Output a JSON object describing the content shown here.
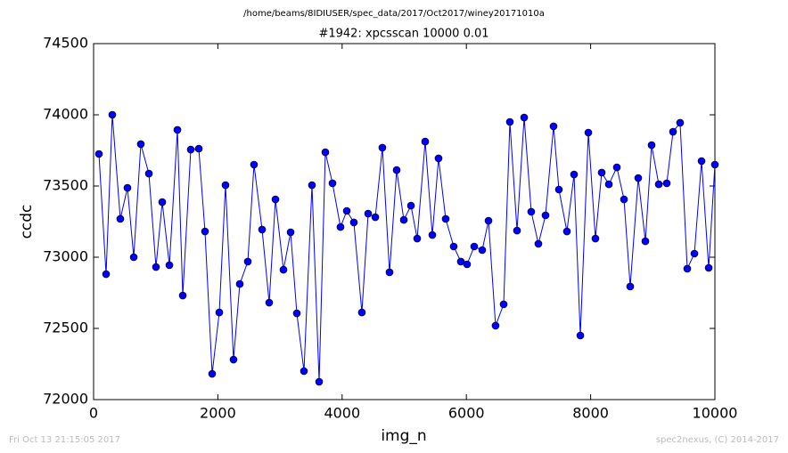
{
  "chart_data": {
    "type": "line",
    "title": "/home/beams/8IDIUSER/spec_data/2017/Oct2017/winey20171010a",
    "subtitle": "#1942: xpcsscan 10000 0.01",
    "x_label": "img_n",
    "y_label": "ccdc",
    "x": [
      86,
      201,
      301,
      430,
      545,
      646,
      760,
      890,
      1004,
      1105,
      1220,
      1349,
      1435,
      1564,
      1693,
      1793,
      1908,
      2023,
      2123,
      2252,
      2353,
      2482,
      2582,
      2712,
      2826,
      2927,
      3056,
      3171,
      3271,
      3386,
      3515,
      3630,
      3730,
      3845,
      3974,
      4075,
      4189,
      4318,
      4419,
      4534,
      4648,
      4763,
      4878,
      4993,
      5108,
      5208,
      5337,
      5452,
      5552,
      5667,
      5796,
      5911,
      6011,
      6126,
      6255,
      6356,
      6470,
      6600,
      6700,
      6815,
      6930,
      7044,
      7159,
      7274,
      7403,
      7489,
      7618,
      7733,
      7834,
      7963,
      8077,
      8178,
      8293,
      8422,
      8537,
      8637,
      8766,
      8881,
      8981,
      9096,
      9225,
      9326,
      9440,
      9555,
      9670,
      9785,
      9900,
      10000
    ],
    "series": [
      {
        "name": "ccdc",
        "color": "#0000ff",
        "values": [
          73725,
          72881,
          74000,
          73269,
          73487,
          73000,
          73794,
          73587,
          72931,
          73387,
          72944,
          73894,
          72731,
          73756,
          73762,
          73181,
          72181,
          72612,
          73506,
          72281,
          72812,
          72969,
          73650,
          73194,
          72681,
          73406,
          72912,
          73175,
          72606,
          72200,
          73506,
          72125,
          73737,
          73519,
          73212,
          73325,
          73244,
          72612,
          73306,
          73281,
          73769,
          72894,
          73612,
          73262,
          73362,
          73131,
          73812,
          73156,
          73694,
          73269,
          73075,
          72969,
          72950,
          73075,
          73050,
          73256,
          72519,
          72669,
          73950,
          73187,
          73981,
          73319,
          73094,
          73294,
          73919,
          73475,
          73181,
          73581,
          72450,
          73875,
          73131,
          73594,
          73512,
          73631,
          73406,
          72794,
          73556,
          73112,
          73787,
          73512,
          73519,
          73881,
          73944,
          72919,
          73025,
          73675,
          72925,
          73650
        ]
      }
    ],
    "xlim": [
      0,
      10000
    ],
    "xticks": [
      0,
      2000,
      4000,
      6000,
      8000,
      10000
    ],
    "ylim": [
      72000,
      74500
    ],
    "yticks": [
      72000,
      72500,
      73000,
      73500,
      74000,
      74500
    ],
    "grid": false
  },
  "footer": {
    "left": "Fri Oct 13 21:15:05 2017",
    "right": "spec2nexus, (C) 2014-2017"
  }
}
